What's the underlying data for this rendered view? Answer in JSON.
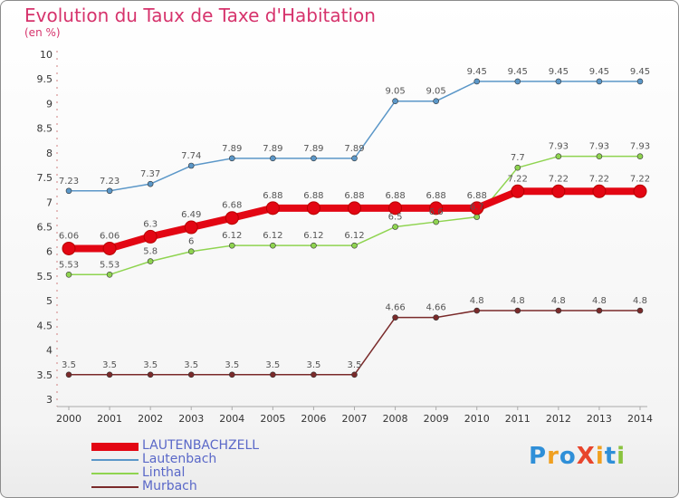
{
  "header": {
    "title": "Evolution du Taux de Taxe d'Habitation",
    "unit": "(en %)"
  },
  "logo": {
    "text": "ProXiti",
    "letters": [
      {
        "ch": "P",
        "color": "#2f8fd8"
      },
      {
        "ch": "r",
        "color": "#f0a020"
      },
      {
        "ch": "o",
        "color": "#2f8fd8"
      },
      {
        "ch": "X",
        "color": "#e8452c"
      },
      {
        "ch": "i",
        "color": "#f0a020"
      },
      {
        "ch": "t",
        "color": "#2f8fd8"
      },
      {
        "ch": "i",
        "color": "#8ac33e"
      }
    ]
  },
  "chart_data": {
    "type": "line",
    "title": "Evolution du Taux de Taxe d'Habitation",
    "ylabel": "(en %)",
    "xlabel": "",
    "x": [
      "2000",
      "2001",
      "2002",
      "2003",
      "2004",
      "2005",
      "2006",
      "2007",
      "2008",
      "2009",
      "2010",
      "2011",
      "2012",
      "2013",
      "2014"
    ],
    "ylim": [
      3,
      10
    ],
    "yticks": [
      "3",
      "3.5",
      "4",
      "4.5",
      "5",
      "5.5",
      "6",
      "6.5",
      "7",
      "7.5",
      "8",
      "8.5",
      "9",
      "9.5",
      "10"
    ],
    "grid": false,
    "legend_position": "bottom-left",
    "series": [
      {
        "name": "Lautenbach",
        "color": "#5b97c8",
        "width": 1.5,
        "values": [
          7.23,
          7.23,
          7.37,
          7.74,
          7.89,
          7.89,
          7.89,
          7.89,
          9.05,
          9.05,
          9.45,
          9.45,
          9.45,
          9.45,
          9.45
        ],
        "labels": [
          "7.23",
          "7.23",
          "7.37",
          "7.74",
          "7.89",
          "7.89",
          "7.89",
          "7.89",
          "9.05",
          "9.05",
          "9.45",
          "9.45",
          "9.45",
          "9.45",
          "9.45"
        ]
      },
      {
        "name": "Linthal",
        "color": "#8fd450",
        "width": 1.5,
        "values": [
          5.53,
          5.53,
          5.8,
          6,
          6.12,
          6.12,
          6.12,
          6.12,
          6.5,
          6.6,
          6.7,
          7.7,
          7.93,
          7.93,
          7.93
        ],
        "labels": [
          "5.53",
          "5.53",
          "5.8",
          "6",
          "6.12",
          "6.12",
          "6.12",
          "6.12",
          "6.5",
          "6.6",
          "6.7",
          "7.7",
          "7.93",
          "7.93",
          "7.93"
        ]
      },
      {
        "name": "Murbach",
        "color": "#7a2a2a",
        "width": 1.5,
        "values": [
          3.5,
          3.5,
          3.5,
          3.5,
          3.5,
          3.5,
          3.5,
          3.5,
          4.66,
          4.66,
          4.8,
          4.8,
          4.8,
          4.8,
          4.8
        ],
        "labels": [
          "3.5",
          "3.5",
          "3.5",
          "3.5",
          "3.5",
          "3.5",
          "3.5",
          "3.5",
          "4.66",
          "4.66",
          "4.8",
          "4.8",
          "4.8",
          "4.8",
          "4.8"
        ]
      },
      {
        "name": "LAUTENBACHZELL",
        "color": "#e30613",
        "width": 8,
        "values": [
          6.06,
          6.06,
          6.3,
          6.49,
          6.68,
          6.88,
          6.88,
          6.88,
          6.88,
          6.88,
          6.88,
          7.22,
          7.22,
          7.22,
          7.22
        ],
        "labels": [
          "6.06",
          "6.06",
          "6.3",
          "6.49",
          "6.68",
          "6.88",
          "6.88",
          "6.88",
          "6.88",
          "6.88",
          "6.88",
          "7.22",
          "7.22",
          "7.22",
          "7.22"
        ]
      }
    ],
    "legend_order": [
      "LAUTENBACHZELL",
      "Lautenbach",
      "Linthal",
      "Murbach"
    ]
  }
}
